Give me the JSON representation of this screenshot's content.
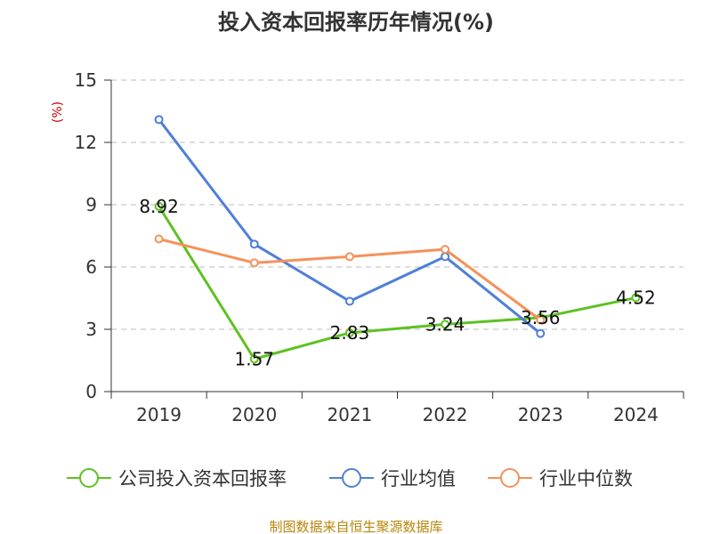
{
  "chart_data": {
    "type": "line",
    "title": "投入资本回报率历年情况(%)",
    "ylabel": "(%)",
    "xlabel": "",
    "categories": [
      "2019",
      "2020",
      "2021",
      "2022",
      "2023",
      "2024"
    ],
    "ylim": [
      0,
      15
    ],
    "yticks": [
      0,
      3,
      6,
      9,
      12,
      15
    ],
    "grid": true,
    "legend_position": "bottom",
    "series": [
      {
        "name": "公司投入资本回报率",
        "color": "#5ec122",
        "values": [
          8.92,
          1.57,
          2.83,
          3.24,
          3.56,
          4.52
        ],
        "labels": [
          "8.92",
          "1.57",
          "2.83",
          "3.24",
          "3.56",
          "4.52"
        ]
      },
      {
        "name": "行业均值",
        "color": "#4f7fd9",
        "values": [
          13.1,
          7.1,
          4.35,
          6.5,
          2.8,
          null
        ]
      },
      {
        "name": "行业中位数",
        "color": "#f5915a",
        "values": [
          7.35,
          6.2,
          6.5,
          6.85,
          3.45,
          null
        ]
      }
    ],
    "source": "制图数据来自恒生聚源数据库"
  }
}
